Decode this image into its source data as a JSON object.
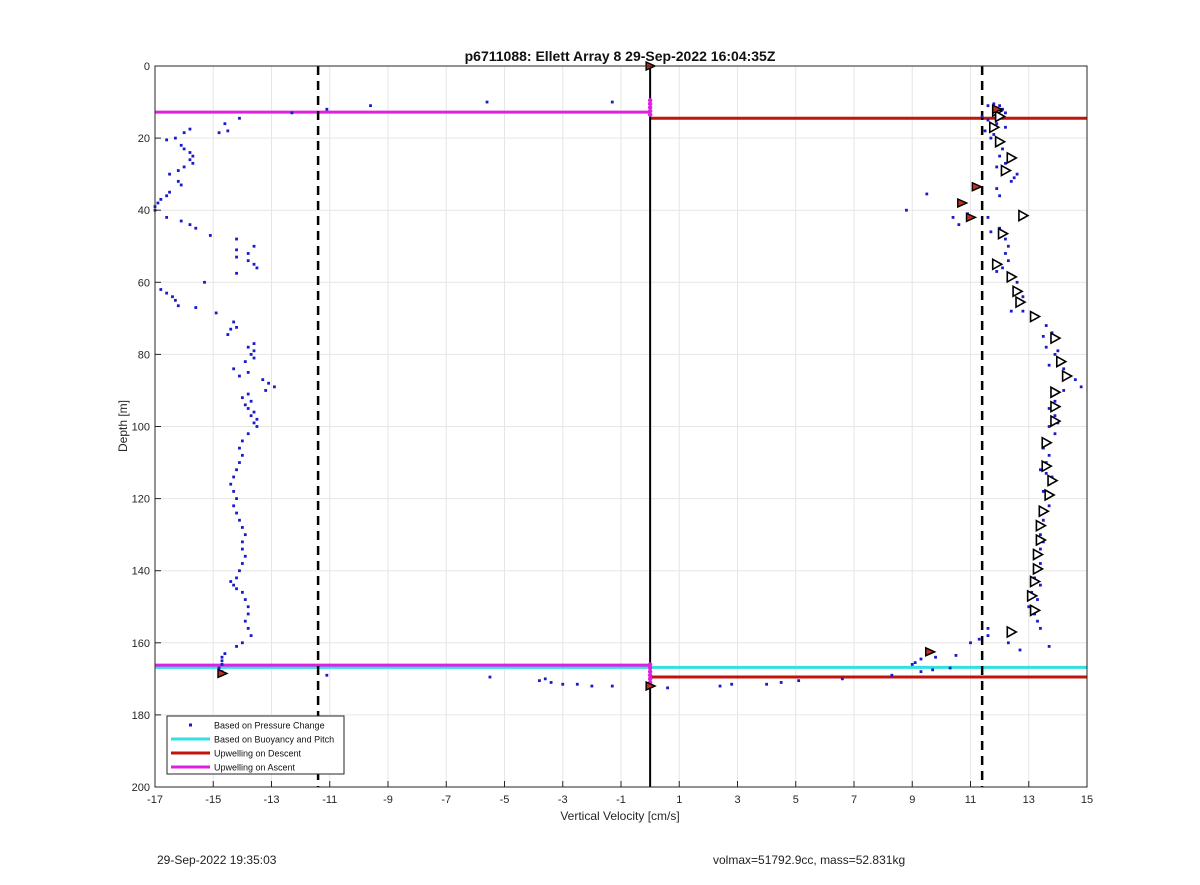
{
  "chart_data": {
    "type": "scatter",
    "title": "p6711088: Ellett Array 8 29-Sep-2022 16:04:35Z",
    "xlabel": "Vertical Velocity [cm/s]",
    "ylabel": "Depth [m]",
    "xlim": [
      -17,
      15
    ],
    "ylim": [
      200,
      0
    ],
    "y_reversed": true,
    "xticks": [
      -17,
      -15,
      -13,
      -11,
      -9,
      -7,
      -5,
      -3,
      -1,
      1,
      3,
      5,
      7,
      9,
      11,
      13,
      15
    ],
    "yticks": [
      0,
      20,
      40,
      60,
      80,
      100,
      120,
      140,
      160,
      180,
      200
    ],
    "grid": true,
    "legend_position": "bottom-left",
    "colors": {
      "pressure": "#1a1acd",
      "buoyancy": "#33e0e0",
      "descent": "#c0140e",
      "ascent": "#e020e0",
      "dashed": "#000000",
      "marker_fill": "#c0301c"
    },
    "legend": [
      {
        "key": "pressure",
        "label": "Based on Pressure Change"
      },
      {
        "key": "buoyancy",
        "label": "Based on Buoyancy and Pitch"
      },
      {
        "key": "descent",
        "label": "Upwelling on Descent"
      },
      {
        "key": "ascent",
        "label": "Upwelling on Ascent"
      }
    ],
    "vertical_lines": [
      {
        "x": -11.4,
        "style": "dashed"
      },
      {
        "x": 11.4,
        "style": "dashed"
      },
      {
        "x": 0,
        "style": "solid"
      }
    ],
    "upwelling_lines": [
      {
        "series": "ascent",
        "y": 12.8,
        "x0": -17,
        "x1": 0
      },
      {
        "series": "descent",
        "y": 14.5,
        "x0": 0,
        "x1": 15
      },
      {
        "series": "buoyancy",
        "y": 166.8,
        "x0": -17,
        "x1": 0
      },
      {
        "series": "ascent",
        "y": 166.2,
        "x0": -17,
        "x1": 0
      },
      {
        "series": "buoyancy",
        "y": 166.8,
        "x0": 0,
        "x1": 15
      },
      {
        "series": "descent",
        "y": 169.5,
        "x0": 0,
        "x1": 15
      }
    ],
    "ascent_points": [
      [
        -14.6,
        16
      ],
      [
        -14.1,
        14.5
      ],
      [
        -12.3,
        13
      ],
      [
        -11.1,
        12
      ],
      [
        -9.6,
        11
      ],
      [
        -5.6,
        10
      ],
      [
        -1.3,
        10
      ],
      [
        -14.5,
        18
      ],
      [
        -14.8,
        18.5
      ],
      [
        -15.8,
        17.5
      ],
      [
        -16,
        18.5
      ],
      [
        -16.3,
        20
      ],
      [
        -16.6,
        20.5
      ],
      [
        -16.1,
        22
      ],
      [
        -16,
        23
      ],
      [
        -15.8,
        24
      ],
      [
        -15.7,
        25
      ],
      [
        -15.8,
        26
      ],
      [
        -15.7,
        27
      ],
      [
        -16.0,
        28
      ],
      [
        -16.2,
        29
      ],
      [
        -16.5,
        30
      ],
      [
        -16.2,
        32
      ],
      [
        -16.1,
        33
      ],
      [
        -16.5,
        35
      ],
      [
        -16.6,
        36
      ],
      [
        -16.8,
        37
      ],
      [
        -16.9,
        38
      ],
      [
        -17,
        39
      ],
      [
        -17,
        40
      ],
      [
        -16.6,
        42
      ],
      [
        -16.1,
        43
      ],
      [
        -15.8,
        44
      ],
      [
        -15.6,
        45
      ],
      [
        -15.1,
        47
      ],
      [
        -14.2,
        48
      ],
      [
        -13.6,
        50
      ],
      [
        -14.2,
        51
      ],
      [
        -13.8,
        52
      ],
      [
        -14.2,
        53
      ],
      [
        -13.8,
        54
      ],
      [
        -13.6,
        55
      ],
      [
        -13.5,
        56
      ],
      [
        -14.2,
        57.5
      ],
      [
        -15.3,
        60
      ],
      [
        -16.8,
        62
      ],
      [
        -16.6,
        63
      ],
      [
        -16.4,
        64
      ],
      [
        -16.3,
        65
      ],
      [
        -16.2,
        66.5
      ],
      [
        -15.6,
        67
      ],
      [
        -14.9,
        68.5
      ],
      [
        -14.3,
        71
      ],
      [
        -14.2,
        72.5
      ],
      [
        -14.4,
        73
      ],
      [
        -14.5,
        74.5
      ],
      [
        -13.6,
        77
      ],
      [
        -13.8,
        78
      ],
      [
        -13.6,
        79
      ],
      [
        -13.7,
        80
      ],
      [
        -13.6,
        81
      ],
      [
        -13.9,
        82
      ],
      [
        -14.3,
        84
      ],
      [
        -13.8,
        85
      ],
      [
        -14.1,
        86
      ],
      [
        -13.3,
        87
      ],
      [
        -13.1,
        88
      ],
      [
        -12.9,
        89
      ],
      [
        -13.2,
        90
      ],
      [
        -13.8,
        91
      ],
      [
        -14.0,
        92
      ],
      [
        -13.7,
        93
      ],
      [
        -13.9,
        94
      ],
      [
        -13.8,
        95
      ],
      [
        -13.6,
        96
      ],
      [
        -13.7,
        97
      ],
      [
        -13.5,
        98
      ],
      [
        -13.6,
        99
      ],
      [
        -13.5,
        100
      ],
      [
        -13.8,
        102
      ],
      [
        -14.0,
        104
      ],
      [
        -14.1,
        106
      ],
      [
        -14.0,
        108
      ],
      [
        -14.1,
        110
      ],
      [
        -14.2,
        112
      ],
      [
        -14.3,
        114
      ],
      [
        -14.4,
        116
      ],
      [
        -14.3,
        118
      ],
      [
        -14.2,
        120
      ],
      [
        -14.3,
        122
      ],
      [
        -14.2,
        124
      ],
      [
        -14.1,
        126
      ],
      [
        -14.0,
        128
      ],
      [
        -13.9,
        130
      ],
      [
        -14.0,
        132
      ],
      [
        -14.0,
        134
      ],
      [
        -13.9,
        136
      ],
      [
        -14.0,
        138
      ],
      [
        -14.1,
        140
      ],
      [
        -14.2,
        142
      ],
      [
        -14.4,
        143
      ],
      [
        -14.3,
        144
      ],
      [
        -14.2,
        145
      ],
      [
        -14.0,
        146
      ],
      [
        -13.9,
        148
      ],
      [
        -13.8,
        150
      ],
      [
        -13.8,
        152
      ],
      [
        -13.9,
        154
      ],
      [
        -13.8,
        156
      ],
      [
        -13.7,
        158
      ],
      [
        -14.0,
        160
      ],
      [
        -14.2,
        161
      ],
      [
        -14.6,
        163
      ],
      [
        -14.7,
        164
      ],
      [
        -14.7,
        165
      ],
      [
        -14.7,
        166
      ],
      [
        -14.8,
        167
      ],
      [
        -14.7,
        168
      ],
      [
        -11.1,
        169
      ],
      [
        -5.5,
        169.5
      ],
      [
        -3.6,
        170
      ],
      [
        -3.8,
        170.5
      ],
      [
        -3.4,
        171
      ],
      [
        -3.0,
        171.5
      ],
      [
        -2.5,
        171.5
      ],
      [
        -2.0,
        172
      ],
      [
        -1.3,
        172
      ],
      [
        0.6,
        172.5
      ]
    ],
    "descent_points": [
      [
        2.4,
        172
      ],
      [
        2.8,
        171.5
      ],
      [
        4.0,
        171.5
      ],
      [
        4.5,
        171
      ],
      [
        5.1,
        170.5
      ],
      [
        6.6,
        170
      ],
      [
        8.3,
        169
      ],
      [
        9.3,
        168
      ],
      [
        9.7,
        167.5
      ],
      [
        10.3,
        167
      ],
      [
        9.0,
        166
      ],
      [
        9.1,
        165.5
      ],
      [
        9.3,
        164.5
      ],
      [
        9.8,
        164
      ],
      [
        10.5,
        163.5
      ],
      [
        11.0,
        160
      ],
      [
        11.3,
        159
      ],
      [
        11.6,
        158
      ],
      [
        11.6,
        156
      ],
      [
        12.3,
        160
      ],
      [
        12.7,
        162
      ],
      [
        13.7,
        161
      ],
      [
        11.6,
        11
      ],
      [
        11.8,
        10.5
      ],
      [
        12.0,
        11
      ],
      [
        12.1,
        12
      ],
      [
        12.2,
        13
      ],
      [
        11.4,
        14
      ],
      [
        11.6,
        15
      ],
      [
        11.9,
        16
      ],
      [
        12.2,
        17
      ],
      [
        11.5,
        18
      ],
      [
        11.8,
        19
      ],
      [
        11.7,
        20
      ],
      [
        11.9,
        22
      ],
      [
        12.1,
        23
      ],
      [
        12.0,
        25
      ],
      [
        12.4,
        26
      ],
      [
        12.2,
        27
      ],
      [
        11.9,
        28
      ],
      [
        12.2,
        29
      ],
      [
        12.6,
        30
      ],
      [
        12.5,
        31
      ],
      [
        12.4,
        32
      ],
      [
        11.9,
        34
      ],
      [
        12.0,
        36
      ],
      [
        9.5,
        35.5
      ],
      [
        8.8,
        40
      ],
      [
        10.4,
        42
      ],
      [
        10.6,
        44
      ],
      [
        10.9,
        41
      ],
      [
        11.6,
        42
      ],
      [
        12.8,
        42
      ],
      [
        12.0,
        45
      ],
      [
        11.7,
        46
      ],
      [
        12.2,
        48
      ],
      [
        12.3,
        50
      ],
      [
        12.2,
        52
      ],
      [
        12.3,
        54
      ],
      [
        12.1,
        56
      ],
      [
        11.9,
        57
      ],
      [
        12.4,
        58
      ],
      [
        12.6,
        60
      ],
      [
        12.5,
        62
      ],
      [
        12.8,
        64
      ],
      [
        12.6,
        66
      ],
      [
        12.4,
        68
      ],
      [
        12.8,
        68
      ],
      [
        13.2,
        70
      ],
      [
        13.6,
        72
      ],
      [
        13.8,
        74
      ],
      [
        13.5,
        75
      ],
      [
        13.9,
        76
      ],
      [
        13.6,
        78
      ],
      [
        14.0,
        79
      ],
      [
        13.9,
        80
      ],
      [
        13.7,
        83
      ],
      [
        14.2,
        84
      ],
      [
        14.4,
        86
      ],
      [
        14.6,
        87
      ],
      [
        14.8,
        89
      ],
      [
        14.2,
        90
      ],
      [
        13.8,
        91
      ],
      [
        13.9,
        93
      ],
      [
        13.7,
        95
      ],
      [
        13.9,
        97
      ],
      [
        14.0,
        99
      ],
      [
        13.7,
        100
      ],
      [
        13.9,
        102
      ],
      [
        13.6,
        104
      ],
      [
        13.5,
        106
      ],
      [
        13.7,
        108
      ],
      [
        13.6,
        110
      ],
      [
        13.4,
        112
      ],
      [
        13.6,
        113
      ],
      [
        13.8,
        114
      ],
      [
        13.7,
        116
      ],
      [
        13.5,
        118
      ],
      [
        13.6,
        120
      ],
      [
        13.7,
        122
      ],
      [
        13.4,
        124
      ],
      [
        13.5,
        126
      ],
      [
        13.3,
        128
      ],
      [
        13.4,
        130
      ],
      [
        13.5,
        132
      ],
      [
        13.4,
        134
      ],
      [
        13.2,
        136
      ],
      [
        13.4,
        138
      ],
      [
        13.3,
        140
      ],
      [
        13.2,
        142
      ],
      [
        13.4,
        144
      ],
      [
        13.1,
        146
      ],
      [
        13.3,
        148
      ],
      [
        13.0,
        150
      ],
      [
        13.2,
        152
      ],
      [
        13.3,
        154
      ],
      [
        13.4,
        156
      ]
    ],
    "triangles": [
      [
        11.9,
        12.5
      ],
      [
        12.0,
        14
      ],
      [
        11.8,
        17
      ],
      [
        12.0,
        21
      ],
      [
        12.4,
        25.5
      ],
      [
        12.2,
        29
      ],
      [
        12.8,
        41.5
      ],
      [
        12.1,
        46.5
      ],
      [
        11.9,
        55
      ],
      [
        12.4,
        58.5
      ],
      [
        12.6,
        62.5
      ],
      [
        12.7,
        65.5
      ],
      [
        13.2,
        69.5
      ],
      [
        13.9,
        75.5
      ],
      [
        14.1,
        82
      ],
      [
        14.3,
        86
      ],
      [
        13.9,
        90.5
      ],
      [
        13.9,
        94.5
      ],
      [
        13.9,
        98.5
      ],
      [
        13.6,
        104.5
      ],
      [
        13.6,
        111
      ],
      [
        13.8,
        115
      ],
      [
        13.7,
        119
      ],
      [
        13.5,
        123.5
      ],
      [
        13.4,
        127.5
      ],
      [
        13.4,
        131.5
      ],
      [
        13.3,
        135.5
      ],
      [
        13.3,
        139.5
      ],
      [
        13.2,
        143
      ],
      [
        13.1,
        147
      ],
      [
        13.2,
        151
      ],
      [
        12.4,
        157
      ]
    ],
    "filled_markers": [
      [
        0,
        0
      ],
      [
        11.9,
        12
      ],
      [
        11.2,
        33.5
      ],
      [
        10.7,
        38
      ],
      [
        11.0,
        42
      ],
      [
        9.6,
        162.5
      ],
      [
        -14.7,
        168.5
      ],
      [
        0,
        172
      ]
    ],
    "pink_markers": [
      [
        0,
        9.5
      ],
      [
        0,
        10.5
      ],
      [
        0,
        11.5
      ],
      [
        0,
        12.5
      ],
      [
        0,
        13.5
      ],
      [
        0,
        166
      ],
      [
        0,
        167
      ],
      [
        0,
        168
      ],
      [
        0,
        169
      ],
      [
        0,
        170
      ],
      [
        0,
        171
      ]
    ]
  },
  "footer": {
    "left": "29-Sep-2022 19:35:03",
    "right": "volmax=51792.9cc, mass=52.831kg"
  }
}
